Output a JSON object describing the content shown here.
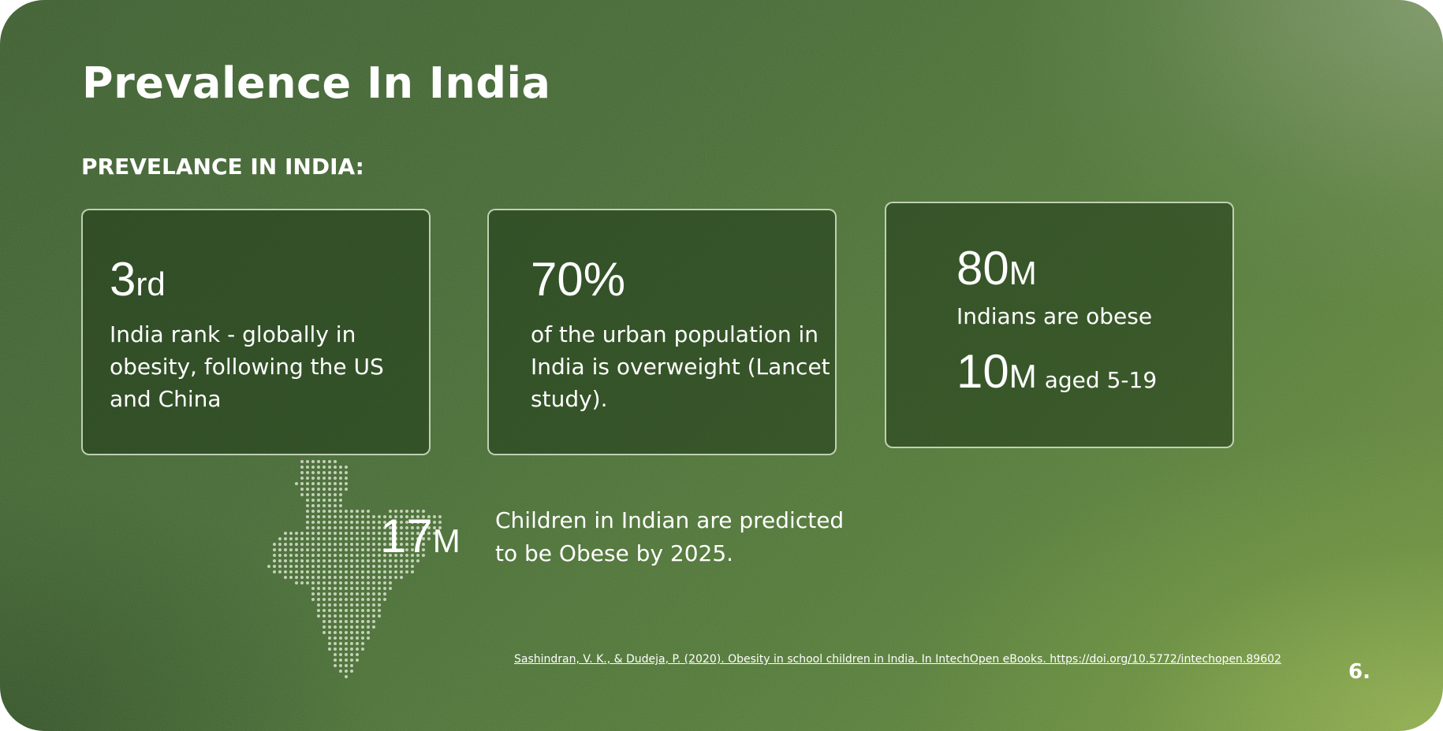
{
  "slide": {
    "title": "Prevalence In India",
    "subtitle": "PREVELANCE IN INDIA:",
    "page_number": "6."
  },
  "cards": [
    {
      "value": "3",
      "suffix": "rd",
      "description": "India rank - globally in obesity, following the US and China"
    },
    {
      "value": "70%",
      "suffix": "",
      "description": "of the urban population in India is overweight (Lancet study)."
    },
    {
      "value": "80",
      "suffix": "M",
      "description": "Indians are obese",
      "value2": "10",
      "suffix2": "M",
      "description2": "aged 5-19"
    }
  ],
  "prediction": {
    "value": "17",
    "suffix": "M",
    "text": "Children in Indian are predicted to be Obese by 2025."
  },
  "citation": "Sashindran, V. K., & Dudeja, P. (2020). Obesity in school children in India. In IntechOpen eBooks. https://doi.org/10.5772/intechopen.89602",
  "colors": {
    "background_dark": "#3c5f2e",
    "background_light": "#8aa84a",
    "card_border": "#d7e6cd",
    "text": "#ffffff"
  },
  "icons": [
    "india-map-dotted-icon"
  ]
}
